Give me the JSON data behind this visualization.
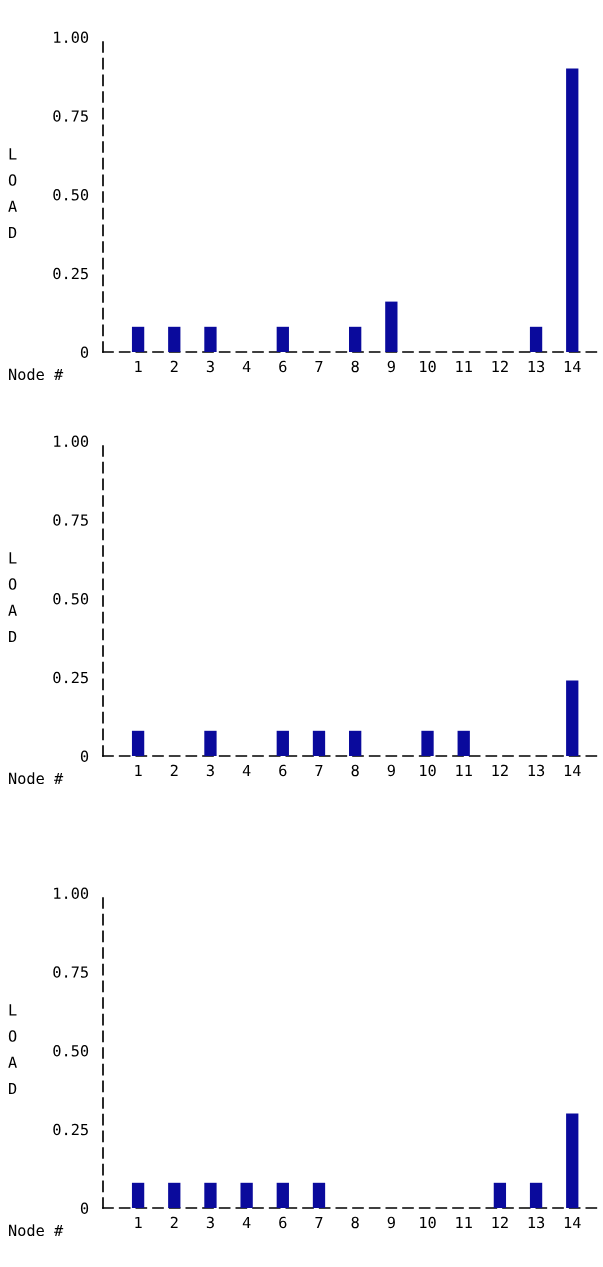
{
  "chart_data": [
    {
      "type": "bar",
      "xlabel": "Node #",
      "ylabel": "LOAD",
      "categories": [
        "1",
        "2",
        "3",
        "4",
        "6",
        "7",
        "8",
        "9",
        "10",
        "11",
        "12",
        "13",
        "14"
      ],
      "color": "#0a0a9c",
      "values": [
        0.08,
        0.08,
        0.08,
        0,
        0.08,
        0,
        0.08,
        0.16,
        0,
        0,
        0,
        0.08,
        0.9
      ],
      "ylim": [
        0,
        1
      ],
      "yticks": [
        0,
        {
          "value": 0.25,
          "label": "0.25"
        },
        {
          "value": 0.5,
          "label": "0.50"
        },
        {
          "value": 0.75,
          "label": "0.75"
        },
        {
          "value": 1,
          "label": "1.00"
        }
      ],
      "grid": false
    },
    {
      "type": "bar",
      "xlabel": "Node #",
      "ylabel": "LOAD",
      "categories": [
        "1",
        "2",
        "3",
        "4",
        "6",
        "7",
        "8",
        "9",
        "10",
        "11",
        "12",
        "13",
        "14"
      ],
      "color": "#0a0a9c",
      "values": [
        0.08,
        0,
        0.08,
        0,
        0.08,
        0.08,
        0.08,
        0,
        0.08,
        0.08,
        0,
        0,
        0.24
      ],
      "ylim": [
        0,
        1
      ],
      "yticks": [
        0,
        {
          "value": 0.25,
          "label": "0.25"
        },
        {
          "value": 0.5,
          "label": "0.50"
        },
        {
          "value": 0.75,
          "label": "0.75"
        },
        {
          "value": 1,
          "label": "1.00"
        }
      ],
      "grid": false
    },
    {
      "type": "bar",
      "xlabel": "Node #",
      "ylabel": "LOAD",
      "categories": [
        "1",
        "2",
        "3",
        "4",
        "6",
        "7",
        "8",
        "9",
        "10",
        "11",
        "12",
        "13",
        "14"
      ],
      "color": "#0a0a9c",
      "values": [
        0.08,
        0.08,
        0.08,
        0.08,
        0.08,
        0.08,
        0,
        0,
        0,
        0,
        0.08,
        0.08,
        0.3
      ],
      "ylim": [
        0,
        1
      ],
      "yticks": [
        0,
        {
          "value": 0.25,
          "label": "0.25"
        },
        {
          "value": 0.5,
          "label": "0.50"
        },
        {
          "value": 0.75,
          "label": "0.75"
        },
        {
          "value": 1,
          "label": "1.00"
        }
      ],
      "grid": false
    }
  ]
}
